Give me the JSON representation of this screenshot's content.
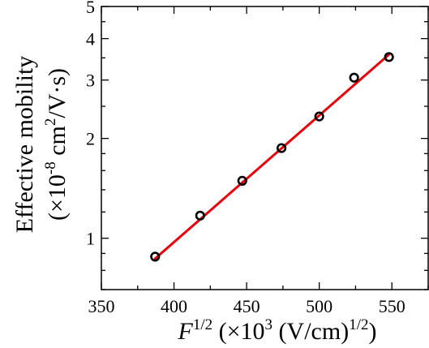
{
  "chart_data": {
    "type": "scatter",
    "xlabel": {
      "var": "F",
      "var_exp": "1/2",
      "rest": " (×10",
      "rest_exp": "3",
      "unit": " (V/cm)",
      "unit_exp": "1/2",
      "close": ")"
    },
    "ylabel": {
      "line1": "Effective mobility",
      "line2_a": "(×10",
      "line2_exp1": "-8",
      "line2_b": " cm",
      "line2_exp2": "2",
      "line2_c": "/V·s)"
    },
    "x_ticks": [
      "350",
      "400",
      "450",
      "500",
      "550"
    ],
    "y_ticks": [
      "1",
      "2",
      "3",
      "4",
      "5"
    ],
    "xlim": [
      350,
      575
    ],
    "ylim": [
      0.7,
      5
    ],
    "y_scale": "log",
    "points": [
      {
        "x": 387,
        "y": 0.88
      },
      {
        "x": 418,
        "y": 1.17
      },
      {
        "x": 447,
        "y": 1.49
      },
      {
        "x": 474,
        "y": 1.87
      },
      {
        "x": 500,
        "y": 2.33
      },
      {
        "x": 524,
        "y": 3.05
      },
      {
        "x": 548,
        "y": 3.52
      }
    ],
    "fit_line": {
      "x": [
        387,
        548
      ],
      "y": [
        0.868,
        3.58
      ]
    },
    "marker_color": "#000000",
    "fit_color": "#e8000b"
  }
}
